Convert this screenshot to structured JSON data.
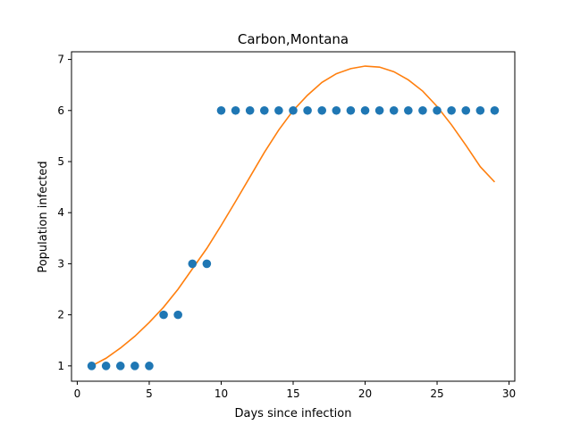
{
  "chart_data": {
    "type": "scatter",
    "title": "Carbon,Montana",
    "xlabel": "Days since infection",
    "ylabel": "Population infected",
    "xlim": [
      -0.4,
      30.4
    ],
    "ylim": [
      0.7,
      7.15
    ],
    "xticks": [
      0,
      5,
      10,
      15,
      20,
      25,
      30
    ],
    "yticks": [
      1,
      2,
      3,
      4,
      5,
      6,
      7
    ],
    "grid": false,
    "series": [
      {
        "type": "scatter",
        "color": "#1f77b4",
        "x": [
          1,
          2,
          3,
          4,
          5,
          6,
          7,
          8,
          9,
          10,
          11,
          12,
          13,
          14,
          15,
          16,
          17,
          18,
          19,
          20,
          21,
          22,
          23,
          24,
          25,
          26,
          27,
          28,
          29
        ],
        "y": [
          1,
          1,
          1,
          1,
          1,
          2,
          2,
          3,
          3,
          6,
          6,
          6,
          6,
          6,
          6,
          6,
          6,
          6,
          6,
          6,
          6,
          6,
          6,
          6,
          6,
          6,
          6,
          6,
          6
        ]
      },
      {
        "type": "line",
        "color": "#ff7f0e",
        "x": [
          1,
          2,
          3,
          4,
          5,
          6,
          7,
          8,
          9,
          10,
          11,
          12,
          13,
          14,
          15,
          16,
          17,
          18,
          19,
          20,
          21,
          22,
          23,
          24,
          25,
          26,
          27,
          28,
          29
        ],
        "y": [
          1.0,
          1.15,
          1.35,
          1.58,
          1.85,
          2.15,
          2.5,
          2.9,
          3.3,
          3.75,
          4.22,
          4.7,
          5.18,
          5.62,
          6.0,
          6.3,
          6.55,
          6.72,
          6.82,
          6.87,
          6.85,
          6.76,
          6.6,
          6.38,
          6.08,
          5.72,
          5.32,
          4.9,
          4.6
        ]
      }
    ]
  }
}
